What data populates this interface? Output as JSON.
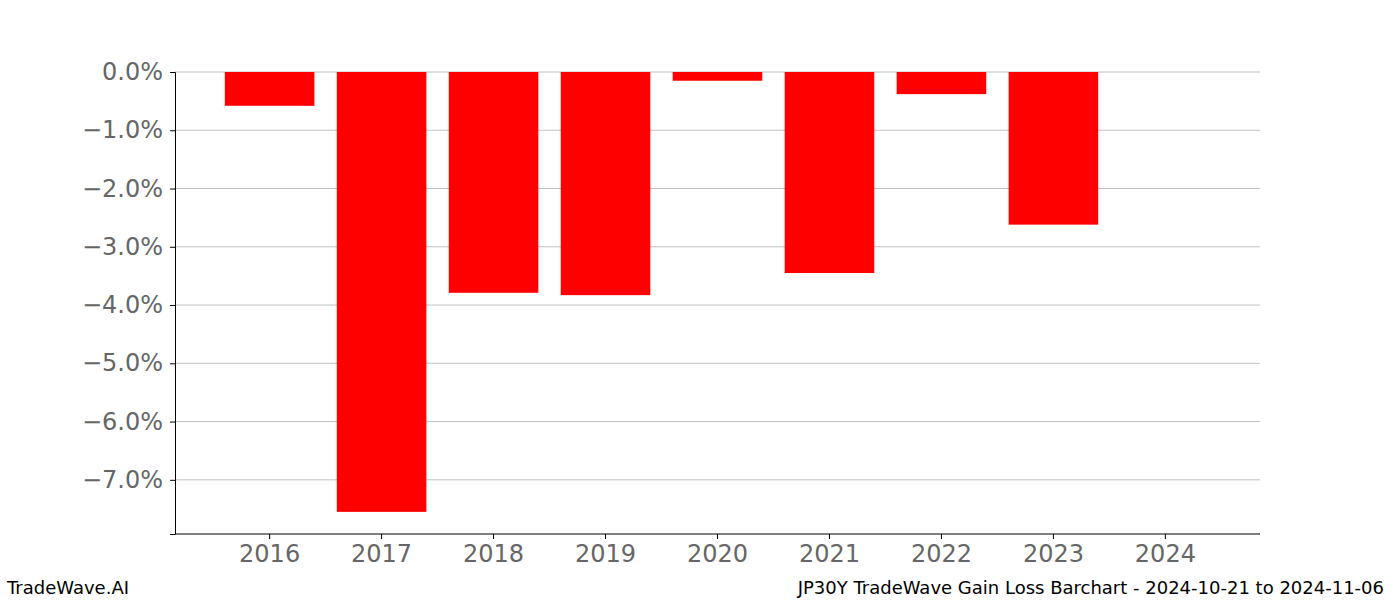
{
  "chart_data": {
    "type": "bar",
    "title": "JP30Y TradeWave Gain Loss Barchart - 2024-10-21 to 2024-11-06",
    "source": "TradeWave.AI",
    "categories": [
      "2016",
      "2017",
      "2018",
      "2019",
      "2020",
      "2021",
      "2022",
      "2023",
      "2024"
    ],
    "values": [
      -0.58,
      -7.55,
      -3.79,
      -3.83,
      -0.15,
      -3.45,
      -0.38,
      -2.62,
      null
    ],
    "color": "#ff0000",
    "ylim": [
      -7.93,
      0
    ],
    "yticks": [
      {
        "value": 0,
        "label": "0.0%"
      },
      {
        "value": -1,
        "label": "−1.0%"
      },
      {
        "value": -2,
        "label": "−2.0%"
      },
      {
        "value": -3,
        "label": "−3.0%"
      },
      {
        "value": -4,
        "label": "−4.0%"
      },
      {
        "value": -5,
        "label": "−5.0%"
      },
      {
        "value": -6,
        "label": "−6.0%"
      },
      {
        "value": -7,
        "label": "−7.0%"
      }
    ],
    "grid": true
  }
}
